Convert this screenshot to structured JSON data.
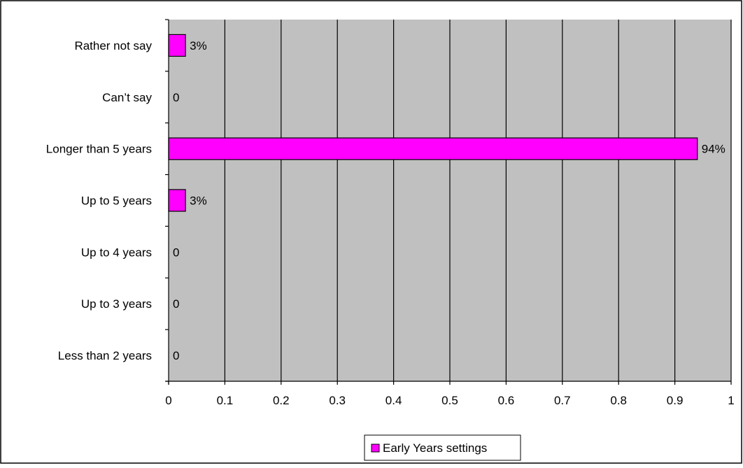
{
  "chart_data": {
    "type": "bar",
    "orientation": "horizontal",
    "title": "",
    "xlabel": "",
    "ylabel": "",
    "categories": [
      "Rather not say",
      "Can’t say",
      "Longer than 5 years",
      "Up to 5 years",
      "Up to 4 years",
      "Up to 3 years",
      "Less than 2 years"
    ],
    "series": [
      {
        "name": "Early Years settings",
        "values": [
          0.03,
          0,
          0.94,
          0.03,
          0,
          0,
          0
        ],
        "labels": [
          "3%",
          "0",
          "94%",
          "3%",
          "0",
          "0",
          "0"
        ]
      }
    ],
    "xlim": [
      0,
      1
    ],
    "xticks": [
      "0",
      "0.1",
      "0.2",
      "0.3",
      "0.4",
      "0.5",
      "0.6",
      "0.7",
      "0.8",
      "0.9",
      "1"
    ],
    "grid": "vertical",
    "legend": "bottom",
    "colors": {
      "bar": "#ff00ff",
      "plot_background": "#c0c0c0",
      "gridline": "#000000"
    }
  }
}
